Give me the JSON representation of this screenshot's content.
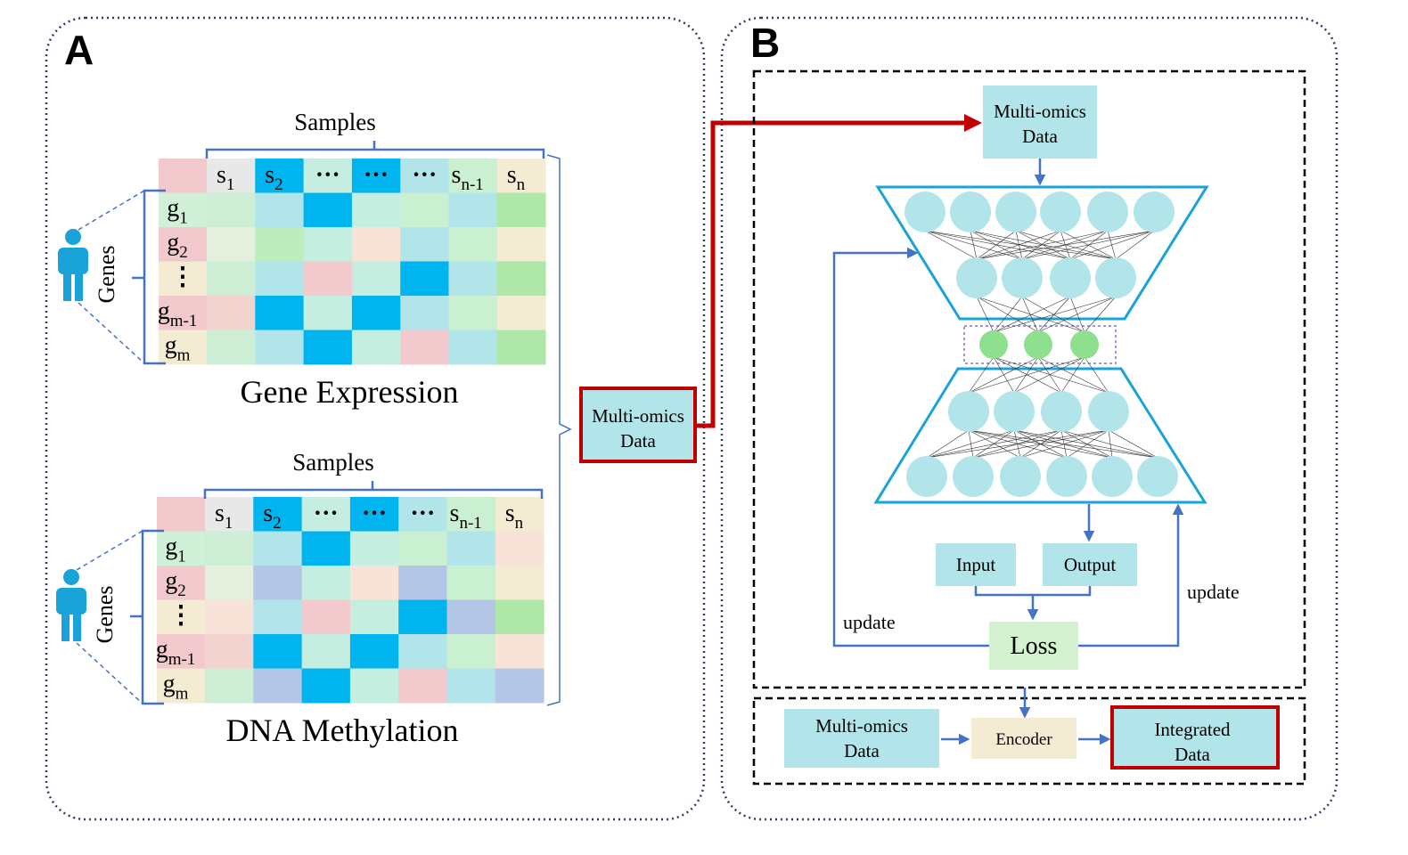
{
  "colors": {
    "blue_line": "#4472c4",
    "red_line": "#c00000",
    "box_fill": "#b2e5ea",
    "loss_fill": "#d4f1d0",
    "encoder_fill": "#f3ecd2",
    "node_fill": "#b2e5ea",
    "latent_fill": "#8ee08e",
    "trap_stroke": "#1aa3d9"
  },
  "panel_a": {
    "label": "A",
    "person_icon": "person-icon",
    "gene_expression": {
      "title": "Gene Expression",
      "samples_label": "Samples",
      "genes_label": "Genes",
      "col_headers": [
        {
          "main": "s",
          "sub": "1"
        },
        {
          "main": "s",
          "sub": "2"
        },
        {
          "main": "···",
          "sub": ""
        },
        {
          "main": "···",
          "sub": ""
        },
        {
          "main": "···",
          "sub": ""
        },
        {
          "main": "s",
          "sub": "n-1"
        },
        {
          "main": "s",
          "sub": "n"
        }
      ],
      "row_headers": [
        {
          "main": "g",
          "sub": "1"
        },
        {
          "main": "g",
          "sub": "2"
        },
        {
          "main": "⋮",
          "sub": ""
        },
        {
          "main": "g",
          "sub": "m-1"
        },
        {
          "main": "g",
          "sub": "m"
        }
      ],
      "corner_color": "#f2c9cc",
      "header_colors": [
        "#e8e8e8",
        "#00b4f0",
        "#c6eee0",
        "#00b4f0",
        "#b2e5ea",
        "#c9f0d0",
        "#f3ecd2"
      ],
      "row_header_colors": [
        "#d0f0d8",
        "#f2c9cc",
        "#f3ecd2",
        "#f2c9cc",
        "#f3ecd2"
      ],
      "cells": [
        [
          "#cdeed5",
          "#b2e5ea",
          "#00b4f0",
          "#c6eee0",
          "#c9f0d0",
          "#b2e5ea",
          "#aee7a8"
        ],
        [
          "#e4efde",
          "#bdedbd",
          "#c6eee0",
          "#f7e3d8",
          "#b2e5ea",
          "#c9f0d0",
          "#f3ecd2"
        ],
        [
          "#cdeed5",
          "#b2e5ea",
          "#f2c9cc",
          "#c6eee0",
          "#00b4f0",
          "#b2e5ea",
          "#aee7a8"
        ],
        [
          "#f2d3cf",
          "#00b4f0",
          "#c6eee0",
          "#00b4f0",
          "#b2e5ea",
          "#c9f0d0",
          "#f3ecd2"
        ],
        [
          "#cdeed5",
          "#b2e5ea",
          "#00b4f0",
          "#c6eee0",
          "#f2c9cc",
          "#b2e5ea",
          "#aee7a8"
        ]
      ]
    },
    "dna_methylation": {
      "title": "DNA Methylation",
      "samples_label": "Samples",
      "genes_label": "Genes",
      "col_headers": [
        {
          "main": "s",
          "sub": "1"
        },
        {
          "main": "s",
          "sub": "2"
        },
        {
          "main": "···",
          "sub": ""
        },
        {
          "main": "···",
          "sub": ""
        },
        {
          "main": "···",
          "sub": ""
        },
        {
          "main": "s",
          "sub": "n-1"
        },
        {
          "main": "s",
          "sub": "n"
        }
      ],
      "row_headers": [
        {
          "main": "g",
          "sub": "1"
        },
        {
          "main": "g",
          "sub": "2"
        },
        {
          "main": "⋮",
          "sub": ""
        },
        {
          "main": "g",
          "sub": "m-1"
        },
        {
          "main": "g",
          "sub": "m"
        }
      ],
      "corner_color": "#f2c9cc",
      "header_colors": [
        "#e8e8e8",
        "#00b4f0",
        "#c6eee0",
        "#00b4f0",
        "#b2e5ea",
        "#c9f0d0",
        "#f3ecd2"
      ],
      "row_header_colors": [
        "#d0f0d8",
        "#f2c9cc",
        "#f3ecd2",
        "#f2c9cc",
        "#f3ecd2"
      ],
      "cells": [
        [
          "#cdeed5",
          "#b2e5ea",
          "#00b4f0",
          "#c6eee0",
          "#c9f0d0",
          "#b2e5ea",
          "#f7e3d8"
        ],
        [
          "#e4efde",
          "#b3c6e6",
          "#c6eee0",
          "#f7e3d8",
          "#b3c6e6",
          "#c9f0d0",
          "#f3ecd2"
        ],
        [
          "#f7e3d8",
          "#b2e5ea",
          "#f2c9cc",
          "#c6eee0",
          "#00b4f0",
          "#b3c6e6",
          "#aee7a8"
        ],
        [
          "#f2d3cf",
          "#00b4f0",
          "#c6eee0",
          "#00b4f0",
          "#b2e5ea",
          "#c9f0d0",
          "#f7e3d8"
        ],
        [
          "#cdeed5",
          "#b3c6e6",
          "#00b4f0",
          "#c6eee0",
          "#f2c9cc",
          "#b2e5ea",
          "#b3c6e6"
        ]
      ]
    },
    "multiomics_box": {
      "line1": "Multi-omics",
      "line2": "Data"
    }
  },
  "panel_b": {
    "label": "B",
    "multiomics_top": {
      "line1": "Multi-omics",
      "line2": "Data"
    },
    "input_label": "Input",
    "output_label": "Output",
    "loss_label": "Loss",
    "update_left": "update",
    "update_right": "update",
    "multiomics_bottom": {
      "line1": "Multi-omics",
      "line2": "Data"
    },
    "encoder_label": "Encoder",
    "integrated": {
      "line1": "Integrated",
      "line2": "Data"
    },
    "network": {
      "layer_sizes": [
        6,
        4,
        3,
        4,
        6
      ]
    }
  }
}
